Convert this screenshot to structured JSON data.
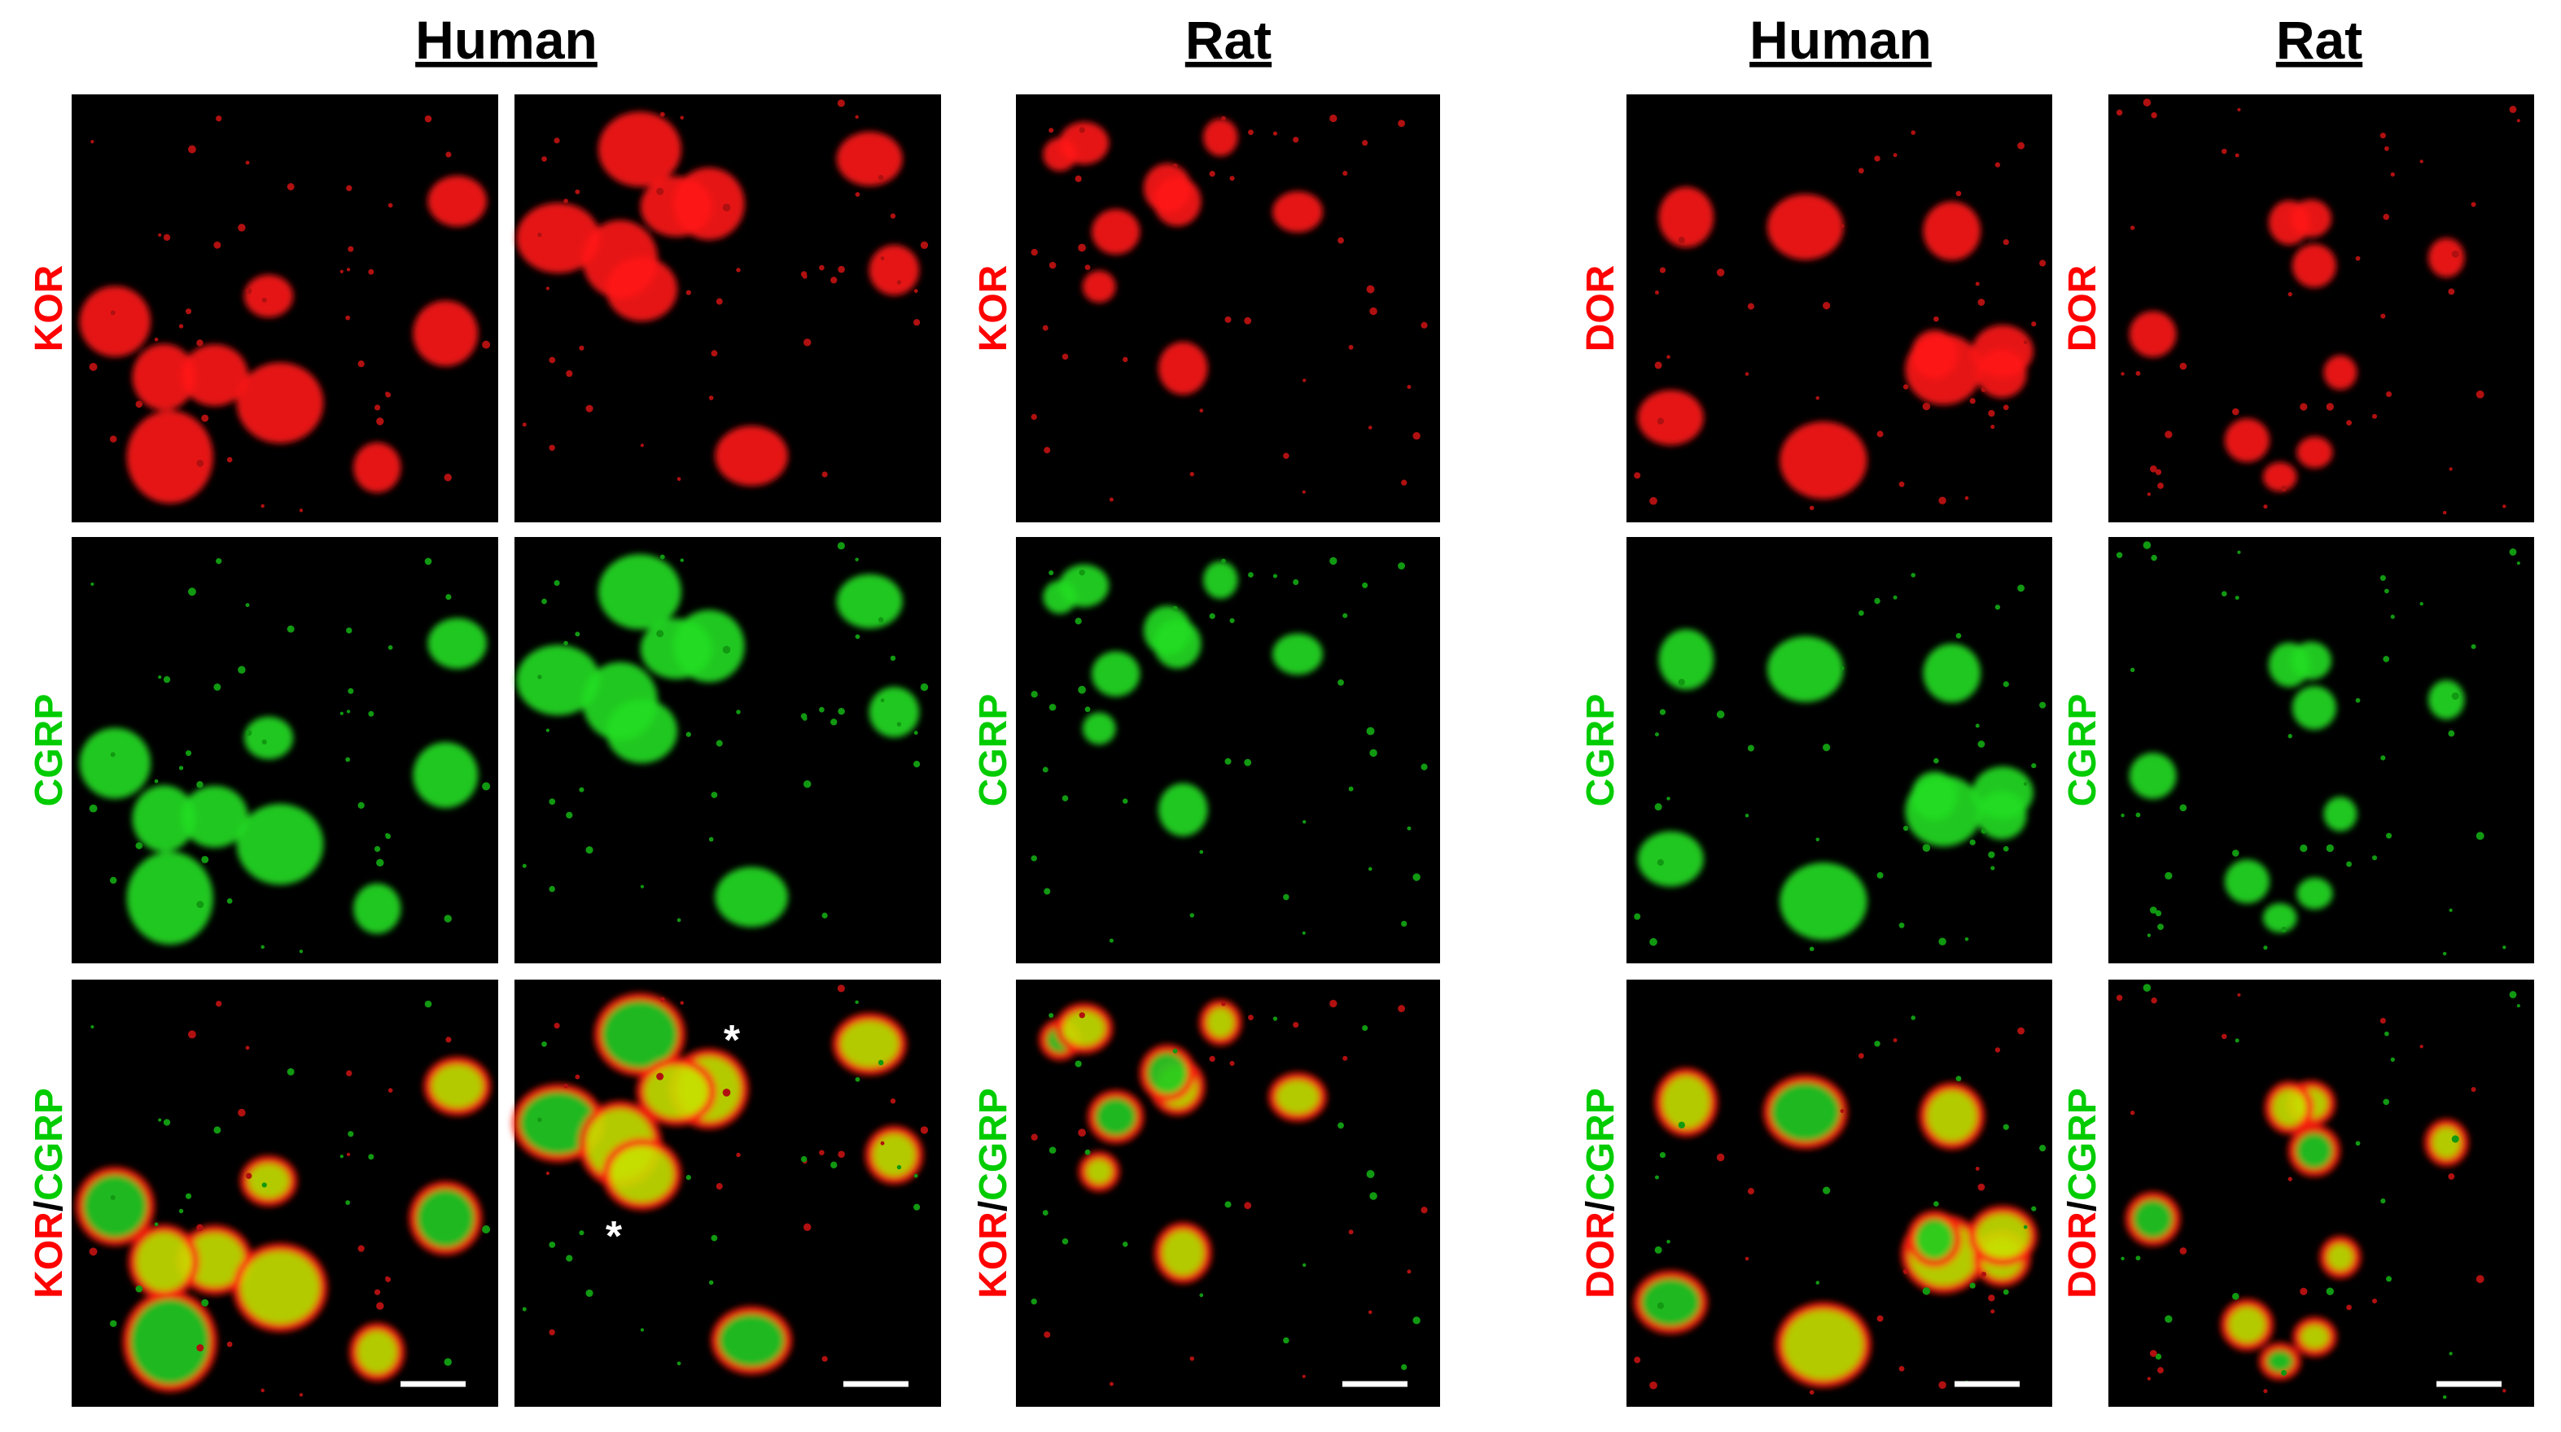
{
  "groups": [
    {
      "header": "Human",
      "rows": [
        [
          {
            "text": "KOR",
            "color": "#ff0000"
          }
        ],
        [
          {
            "text": "CGRP",
            "color": "#00cc00"
          }
        ],
        [
          {
            "text": "KOR",
            "color": "#ff0000"
          },
          {
            "text": "/",
            "color": "#000000"
          },
          {
            "text": "CGRP",
            "color": "#00cc00"
          }
        ]
      ]
    },
    {
      "header": "Rat",
      "rows": [
        [
          {
            "text": "KOR",
            "color": "#ff0000"
          }
        ],
        [
          {
            "text": "CGRP",
            "color": "#00cc00"
          }
        ],
        [
          {
            "text": "KOR",
            "color": "#ff0000"
          },
          {
            "text": "/",
            "color": "#000000"
          },
          {
            "text": "CGRP",
            "color": "#00cc00"
          }
        ]
      ]
    },
    {
      "header": "Human",
      "rows": [
        [
          {
            "text": "DOR",
            "color": "#ff0000"
          }
        ],
        [
          {
            "text": "CGRP",
            "color": "#00cc00"
          }
        ],
        [
          {
            "text": "DOR",
            "color": "#ff0000"
          },
          {
            "text": "/",
            "color": "#000000"
          },
          {
            "text": "CGRP",
            "color": "#00cc00"
          }
        ]
      ]
    },
    {
      "header": "Rat",
      "rows": [
        [
          {
            "text": "DOR",
            "color": "#ff0000"
          }
        ],
        [
          {
            "text": "CGRP",
            "color": "#00cc00"
          }
        ],
        [
          {
            "text": "DOR",
            "color": "#ff0000"
          },
          {
            "text": "/",
            "color": "#000000"
          },
          {
            "text": "CGRP",
            "color": "#00cc00"
          }
        ]
      ]
    }
  ],
  "asterisk": "*"
}
